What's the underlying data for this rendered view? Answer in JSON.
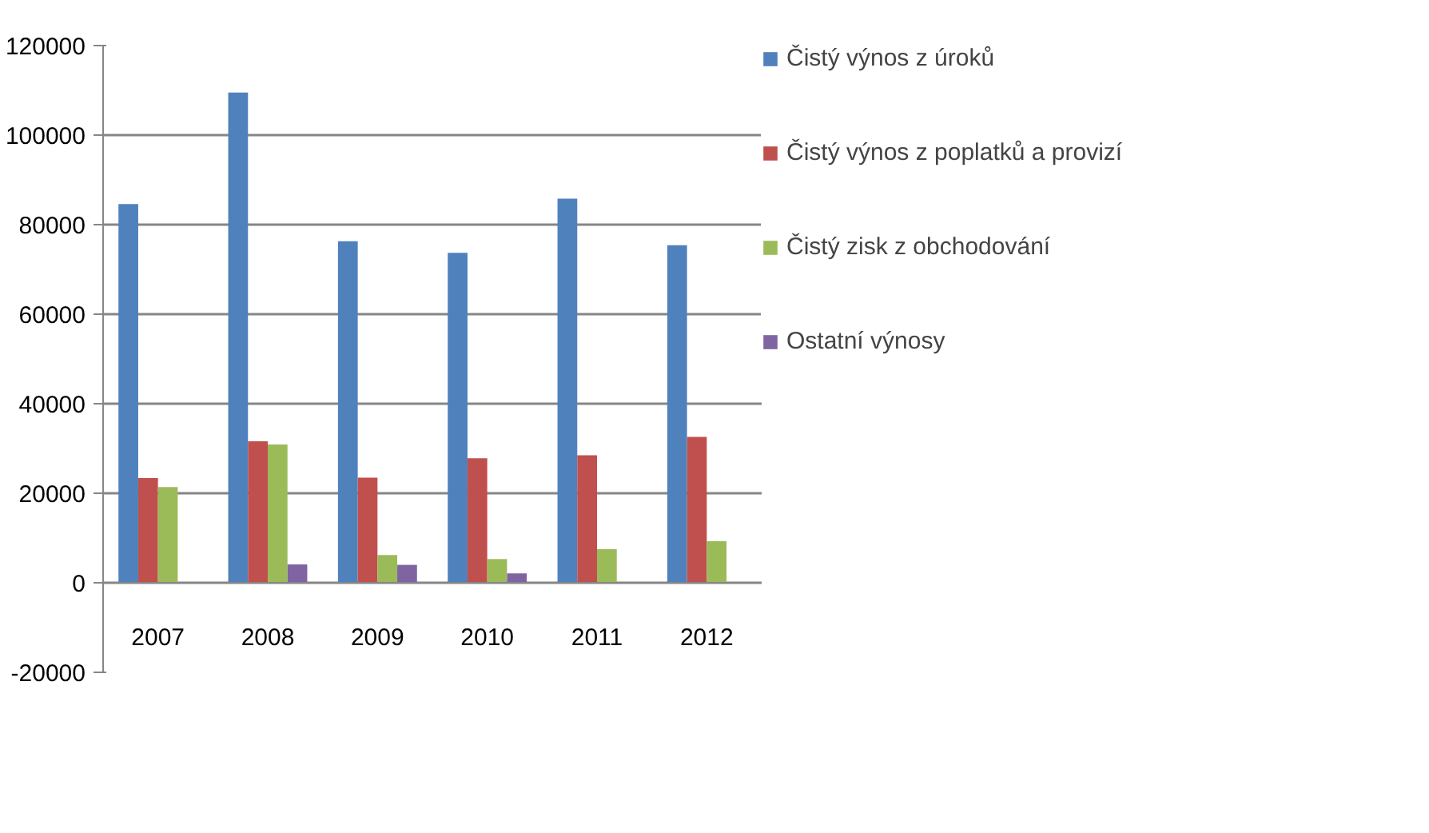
{
  "chart_data": {
    "type": "bar",
    "categories": [
      "2007",
      "2008",
      "2009",
      "2010",
      "2011",
      "2012"
    ],
    "series": [
      {
        "name": "Čistý výnos z úroků",
        "color": "#4f81bd",
        "values": [
          84600,
          109500,
          76300,
          73700,
          85800,
          75400
        ]
      },
      {
        "name": "Čistý výnos z poplatků a provizí",
        "color": "#c0504d",
        "values": [
          23400,
          31600,
          23500,
          27800,
          28500,
          32600
        ]
      },
      {
        "name": "Čistý zisk z obchodování",
        "color": "#9bbb59",
        "values": [
          21400,
          30900,
          6200,
          5300,
          7500,
          9300
        ]
      },
      {
        "name": "Ostatní výnosy",
        "color": "#8064a2",
        "values": [
          null,
          4100,
          4000,
          2100,
          null,
          null
        ]
      }
    ],
    "ylim": [
      -20000,
      120000
    ],
    "yticks": [
      -20000,
      0,
      20000,
      40000,
      60000,
      80000,
      100000,
      120000
    ],
    "grid": "y",
    "legend": "right"
  }
}
